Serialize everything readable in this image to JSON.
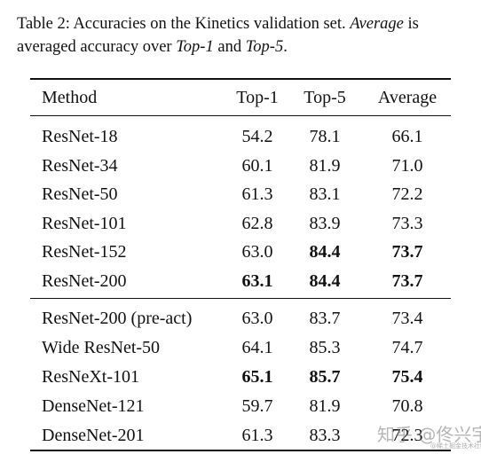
{
  "caption": {
    "prefix": "Table 2:  Accuracies on the Kinetics validation set. ",
    "italic1": "Average",
    "mid1": " is averaged accuracy over ",
    "italic2": "Top-1",
    "mid2": " and ",
    "italic3": "Top-5",
    "suffix": "."
  },
  "table": {
    "headers": {
      "method": "Method",
      "top1": "Top-1",
      "top5": "Top-5",
      "average": "Average"
    },
    "group1": [
      {
        "method": "ResNet-18",
        "top1": "54.2",
        "top5": "78.1",
        "average": "66.1",
        "bold": []
      },
      {
        "method": "ResNet-34",
        "top1": "60.1",
        "top5": "81.9",
        "average": "71.0",
        "bold": []
      },
      {
        "method": "ResNet-50",
        "top1": "61.3",
        "top5": "83.1",
        "average": "72.2",
        "bold": []
      },
      {
        "method": "ResNet-101",
        "top1": "62.8",
        "top5": "83.9",
        "average": "73.3",
        "bold": []
      },
      {
        "method": "ResNet-152",
        "top1": "63.0",
        "top5": "84.4",
        "average": "73.7",
        "bold": [
          "top5",
          "average"
        ]
      },
      {
        "method": "ResNet-200",
        "top1": "63.1",
        "top5": "84.4",
        "average": "73.7",
        "bold": [
          "top1",
          "top5",
          "average"
        ]
      }
    ],
    "group2": [
      {
        "method": "ResNet-200 (pre-act)",
        "top1": "63.0",
        "top5": "83.7",
        "average": "73.4",
        "bold": []
      },
      {
        "method": "Wide ResNet-50",
        "top1": "64.1",
        "top5": "85.3",
        "average": "74.7",
        "bold": []
      },
      {
        "method": "ResNeXt-101",
        "top1": "65.1",
        "top5": "85.7",
        "average": "75.4",
        "bold": [
          "top1",
          "top5",
          "average"
        ]
      },
      {
        "method": "DenseNet-121",
        "top1": "59.7",
        "top5": "81.9",
        "average": "70.8",
        "bold": []
      },
      {
        "method": "DenseNet-201",
        "top1": "61.3",
        "top5": "83.3",
        "average": "72.3",
        "bold": []
      }
    ]
  },
  "watermark": {
    "main": "知乎 @佟兴宇",
    "sub": "@稀土掘金技术社区"
  }
}
